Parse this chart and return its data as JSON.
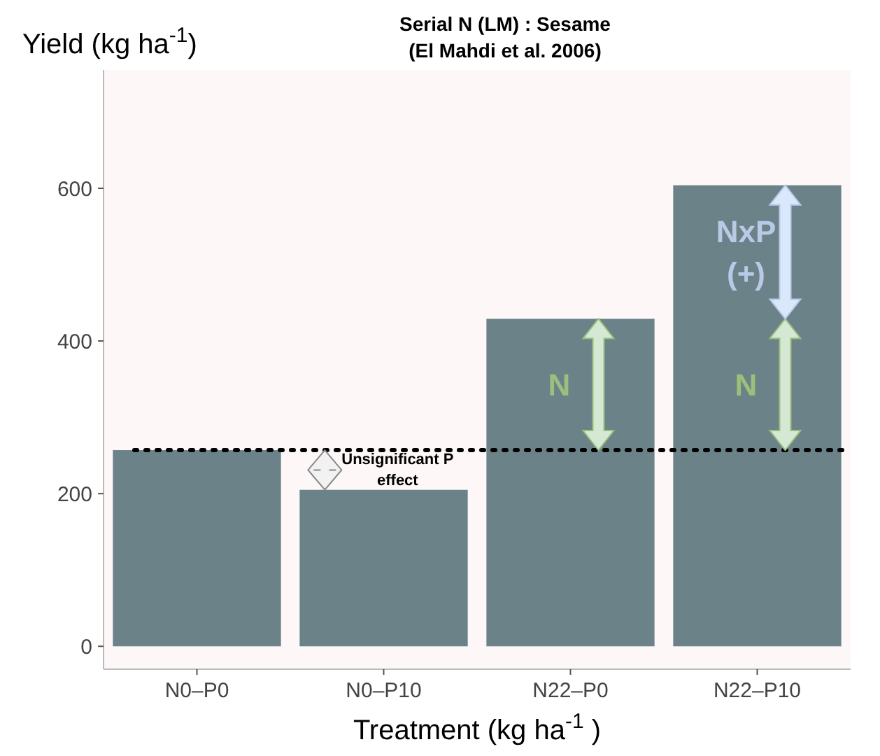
{
  "chart_data": {
    "type": "bar",
    "title": "Serial N (LM) : Sesame",
    "subtitle": "(El Mahdi et al. 2006)",
    "xlabel": "Treatment (kg ha$^{-1}$ )",
    "ylabel": "Yield (kg ha$^{-1}$)",
    "categories": [
      "N0–P0",
      "N0–P10",
      "N22–P0",
      "N22–P10"
    ],
    "values": [
      257,
      205,
      429,
      604
    ],
    "color": "#6b8289",
    "ylim": [
      -30,
      755
    ],
    "yticks": [
      0,
      200,
      400,
      600
    ],
    "grid": false,
    "ref_lines": [
      {
        "axis": "y",
        "value": 257,
        "line_style": "dotted",
        "color": "#000000"
      }
    ],
    "annotations": [
      {
        "text": "Unsignificant P effect",
        "x": "N0–P10",
        "y": 205
      },
      {
        "text": "N",
        "x": "N22–P0",
        "y": 257
      },
      {
        "text": "N",
        "x": "N22–P10",
        "y": 257
      },
      {
        "text": "NxP (+)",
        "x": "N22–P10",
        "y": 604
      }
    ]
  }
}
